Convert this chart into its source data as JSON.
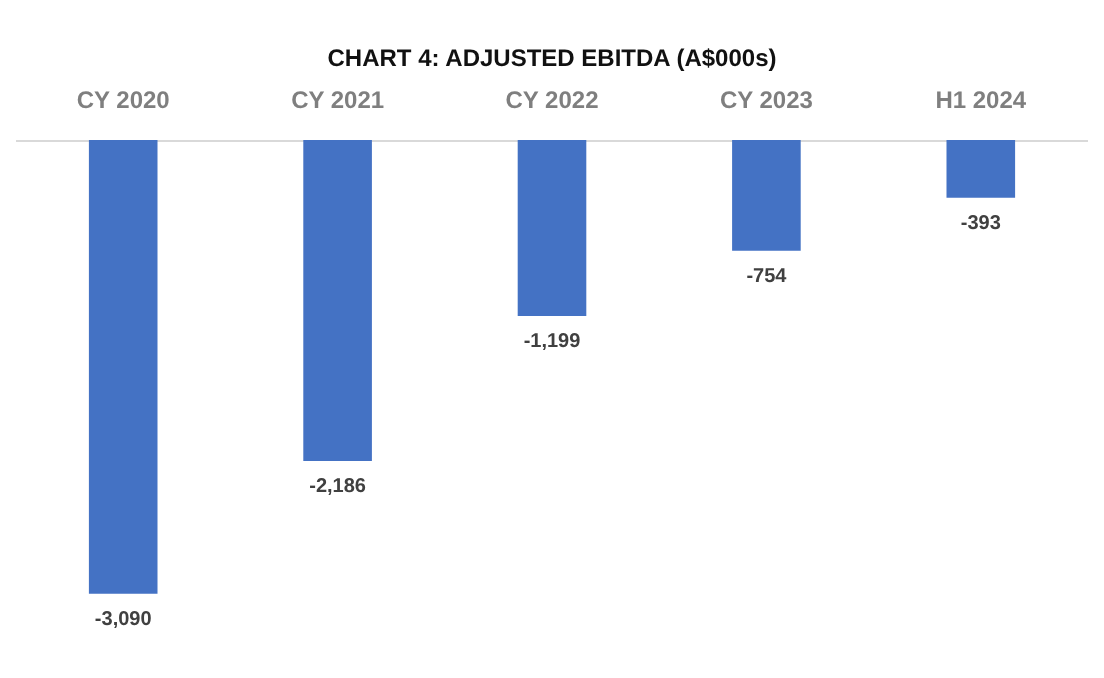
{
  "chart_data": {
    "type": "bar",
    "title": "CHART 4: ADJUSTED EBITDA (A$000s)",
    "categories": [
      "CY 2020",
      "CY 2021",
      "CY 2022",
      "CY 2023",
      "H1 2024"
    ],
    "values": [
      -3090,
      -2186,
      -1199,
      -754,
      -393
    ],
    "value_labels": [
      "-3,090",
      "-2,186",
      "-1,199",
      "-754",
      "-393"
    ],
    "color": "#4472c4"
  }
}
